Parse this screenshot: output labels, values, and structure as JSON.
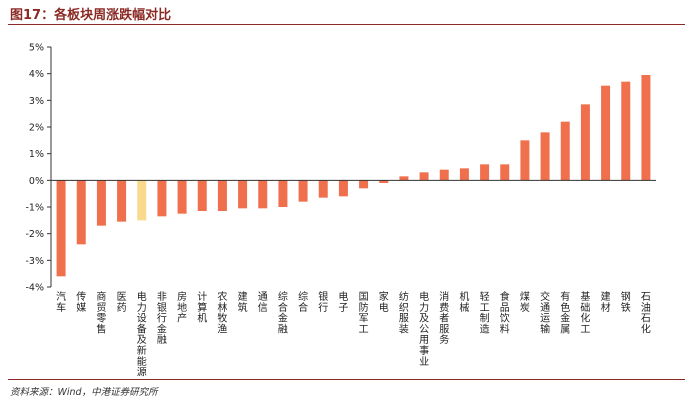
{
  "title": "图17：各板块周涨跌幅对比",
  "source": "资料来源：Wind，中港证券研究所",
  "colors": {
    "bar": "#f0704e",
    "highlight": "#f9d98b",
    "rule": "#8b2a24"
  },
  "chart_data": {
    "type": "bar",
    "ylim": [
      -4,
      5
    ],
    "yticks": [
      5,
      4,
      3,
      2,
      1,
      0,
      -1,
      -2,
      -3,
      -4
    ],
    "ytick_labels": [
      "5%",
      "4%",
      "3%",
      "2%",
      "1%",
      "0%",
      "-1%",
      "-2%",
      "-3%",
      "-4%"
    ],
    "categories": [
      "汽车",
      "传媒",
      "商贸零售",
      "医药",
      "电力设备及新能源",
      "非银行金融",
      "房地产",
      "计算机",
      "农林牧渔",
      "建筑",
      "通信",
      "综合金融",
      "综合",
      "银行",
      "电子",
      "国防军工",
      "家电",
      "纺织服装",
      "电力及公用事业",
      "消费者服务",
      "机械",
      "轻工制造",
      "食品饮料",
      "煤炭",
      "交通运输",
      "有色金属",
      "基础化工",
      "建材",
      "钢铁",
      "石油石化"
    ],
    "values": [
      -3.6,
      -2.4,
      -1.7,
      -1.55,
      -1.5,
      -1.35,
      -1.25,
      -1.15,
      -1.15,
      -1.05,
      -1.05,
      -1.0,
      -0.8,
      -0.65,
      -0.6,
      -0.3,
      -0.1,
      0.15,
      0.3,
      0.4,
      0.45,
      0.6,
      0.6,
      1.5,
      1.8,
      2.2,
      2.85,
      3.55,
      3.7,
      3.95
    ],
    "highlight_index": 4
  }
}
